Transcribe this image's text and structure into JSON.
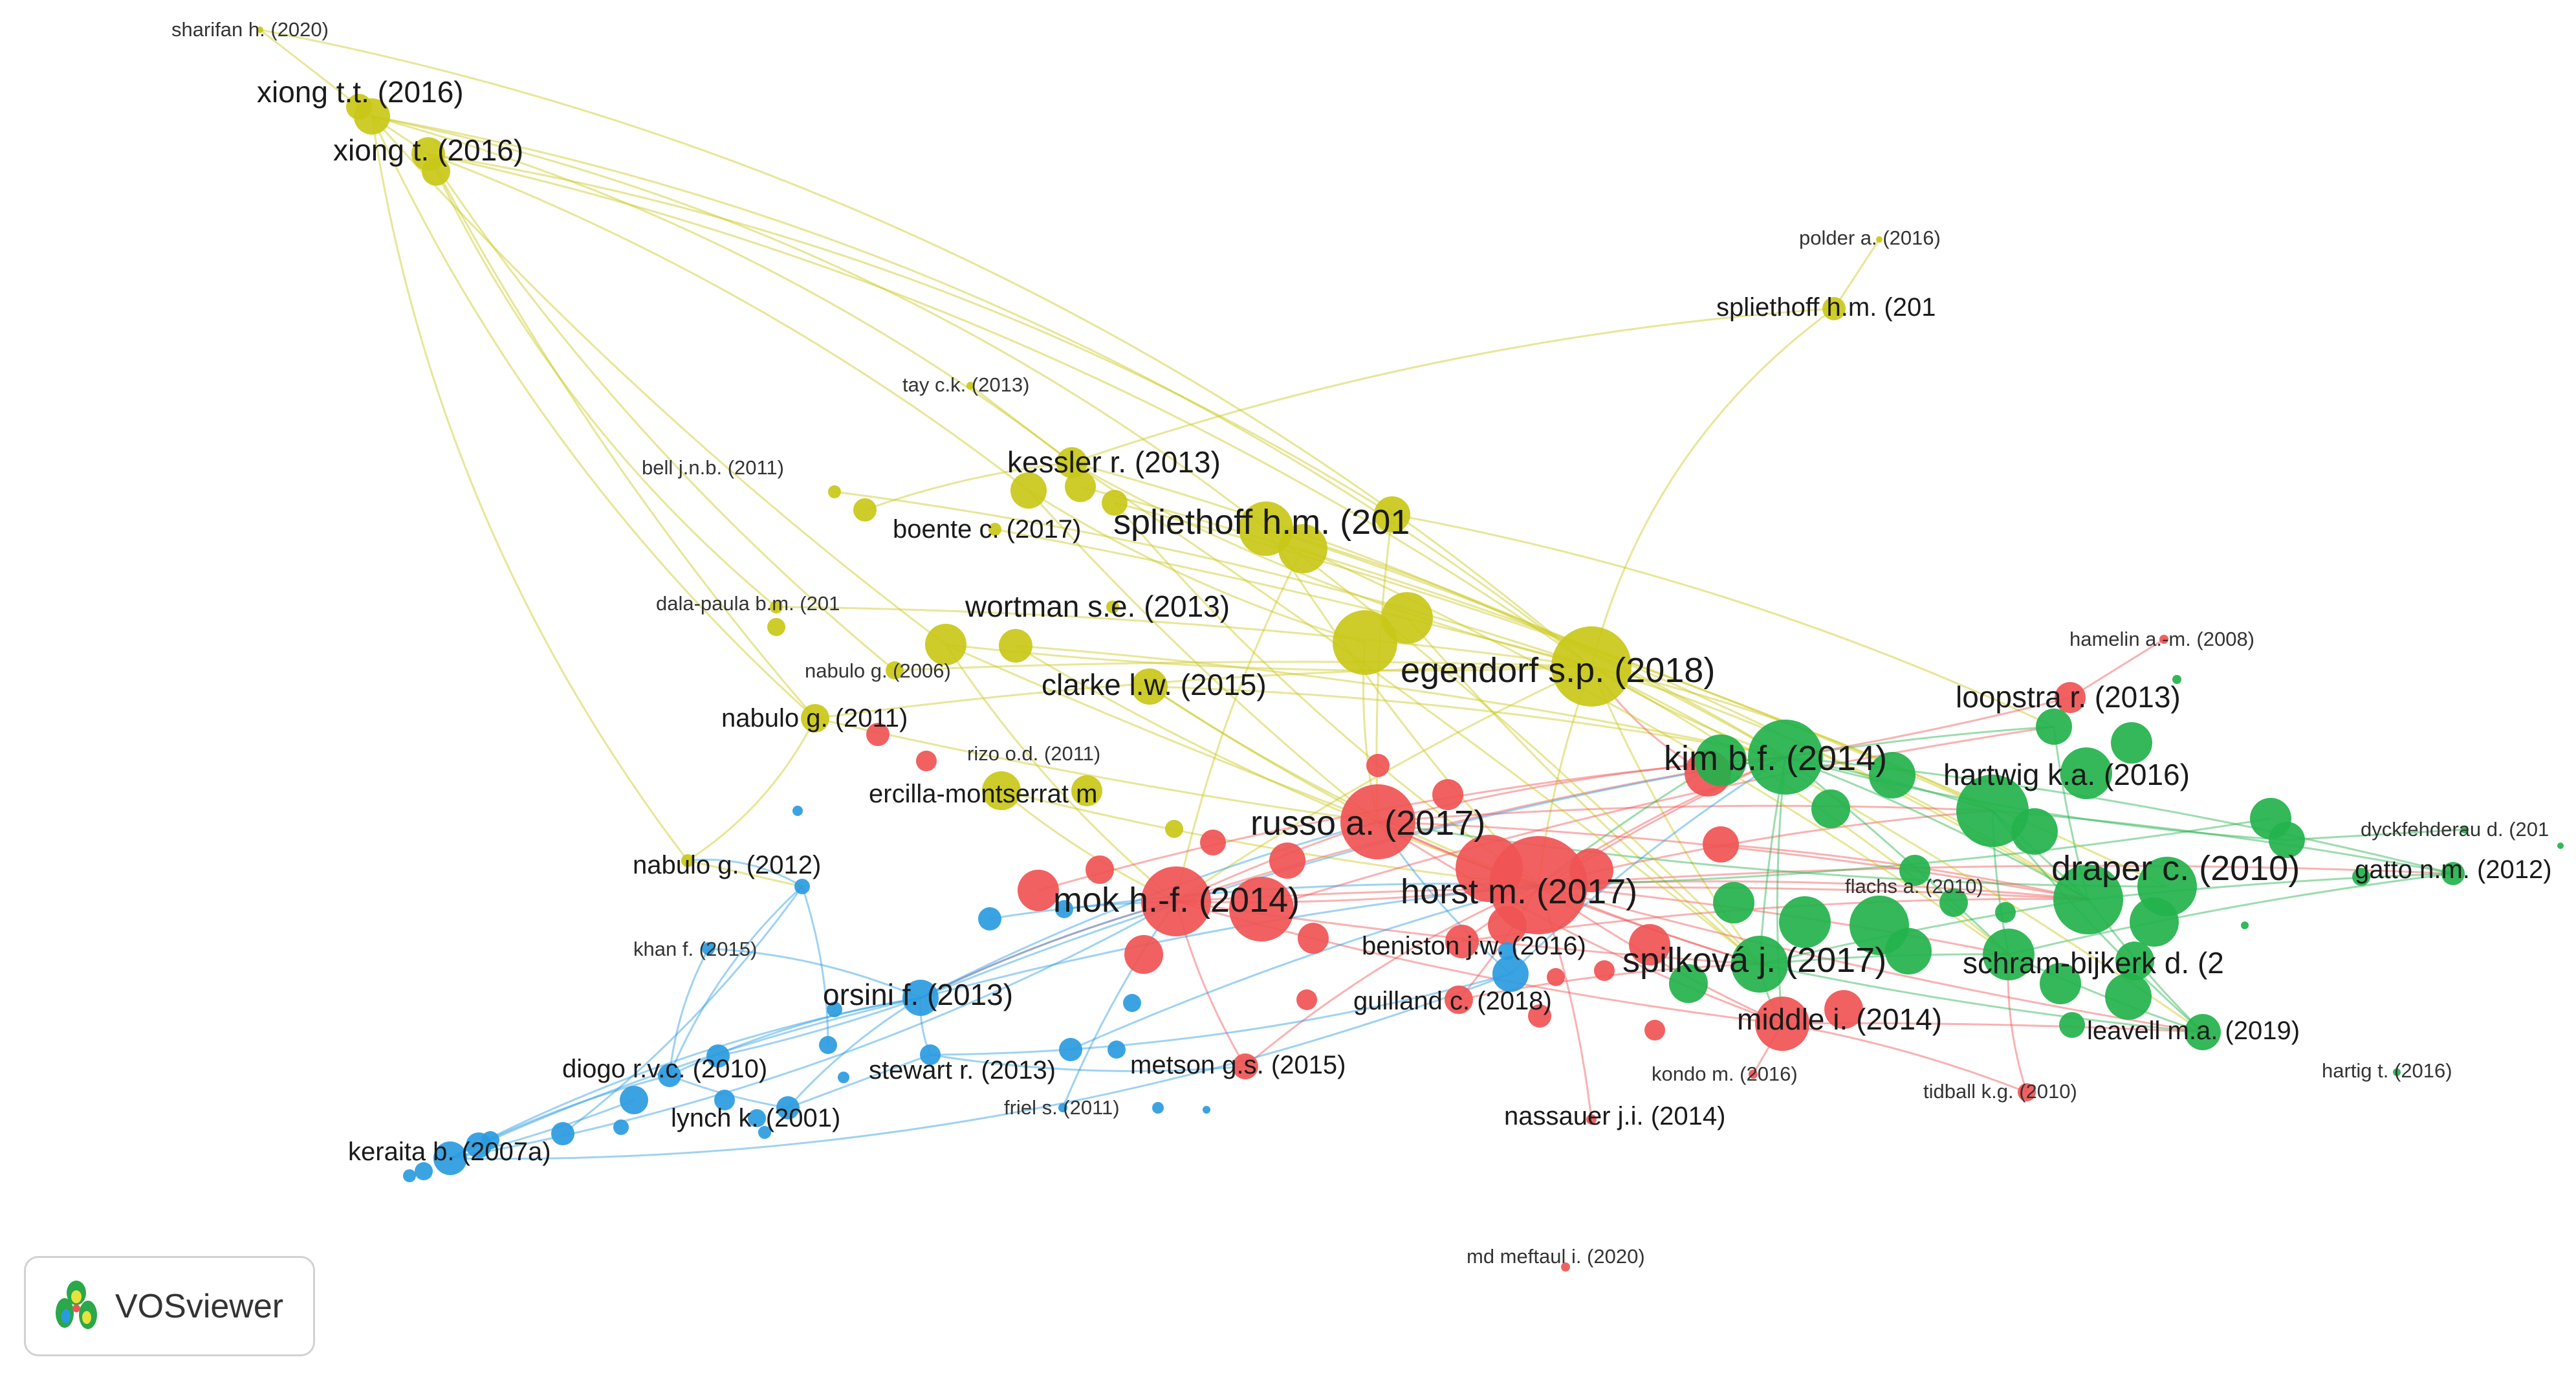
{
  "app": {
    "name": "VOSviewer"
  },
  "cluster_colors": {
    "red": "#f05454",
    "green": "#23b24c",
    "blue": "#2b9be0",
    "yellow": "#c9c818"
  },
  "labels": {
    "sharifan": "sharifan h. (2020)",
    "xiong_tt": "xiong t.t. (2016)",
    "xiong_t": "xiong t. (2016)",
    "polder": "polder a. (2016)",
    "spliethoff_a": "spliethoff h.m. (201",
    "tay": "tay c.k. (2013)",
    "kessler": "kessler r. (2013)",
    "bell": "bell j.n.b. (2011)",
    "boente": "boente c. (2017)",
    "spliethoff_b": "spliethoff h.m. (201",
    "dala_paula": "dala-paula b.m. (201",
    "wortman": "wortman s.e. (2013)",
    "hamelin": "hamelin a.-m. (2008)",
    "egendorf": "egendorf s.p. (2018)",
    "nabulo_2006": "nabulo g. (2006)",
    "clarke": "clarke l.w. (2015)",
    "loopstra": "loopstra r. (2013)",
    "nabulo_2011": "nabulo g. (2011)",
    "kim": "kim b.f. (2014)",
    "rizo": "rizo o.d. (2011)",
    "hartwig": "hartwig k.a. (2016)",
    "ercilla": "ercilla-montserrat m",
    "russo": "russo a. (2017)",
    "dyckfehderau": "dyckfehderau d. (201",
    "nabulo_2012": "nabulo g. (2012)",
    "flachs": "flachs a. (2010)",
    "draper": "draper c. (2010)",
    "gatto": "gatto n.m. (2012)",
    "horst": "horst m. (2017)",
    "mok": "mok h.-f. (2014)",
    "beniston": "beniston j.w. (2016)",
    "khan": "khan f. (2015)",
    "spilkova": "spilková j. (2017)",
    "schram": "schram-bijkerk d. (2",
    "orsini": "orsini f. (2013)",
    "guilland": "guilland c. (2018)",
    "middle": "middle i. (2014)",
    "leavell": "leavell m.a. (2019)",
    "diogo": "diogo r.v.c. (2010)",
    "stewart": "stewart r. (2013)",
    "metson": "metson g.s. (2015)",
    "kondo": "kondo m. (2016)",
    "hartig": "hartig t. (2016)",
    "tidball": "tidball k.g. (2010)",
    "friel": "friel s. (2011)",
    "lynch": "lynch k. (2001)",
    "nassauer": "nassauer j.i. (2014)",
    "keraita": "keraita b. (2007a)",
    "md_meftaul": "md meftaul i. (2020)"
  }
}
